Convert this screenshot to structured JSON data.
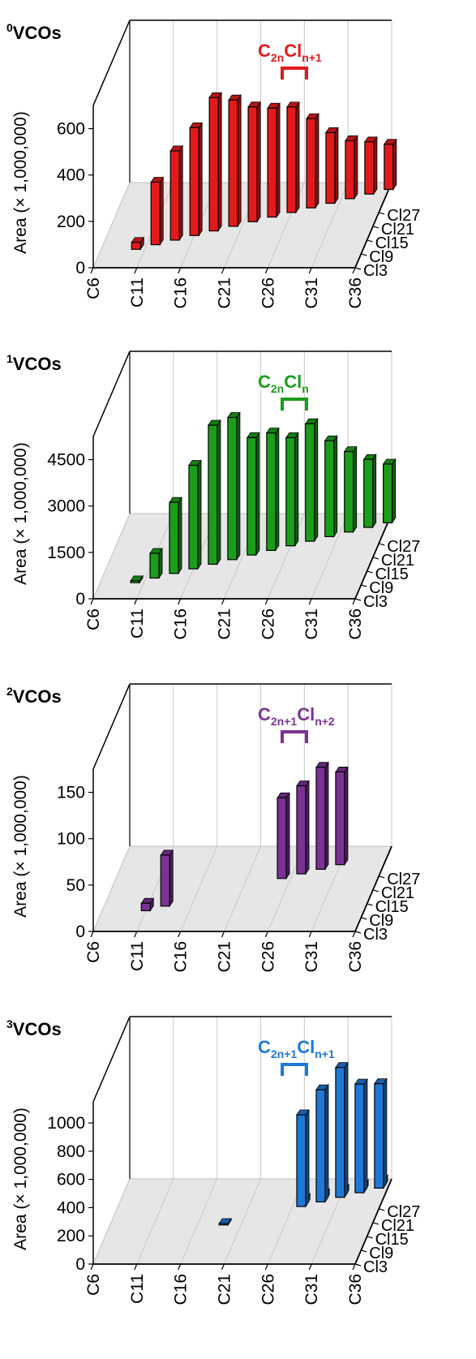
{
  "chart_data": [
    {
      "type": "bar",
      "title": "VCOs",
      "title_sup": "0",
      "color": "#e31a1c",
      "ylabel": "Area (× 1,000,000)",
      "yticks": [
        0,
        200,
        400,
        600
      ],
      "ylim": [
        0,
        700
      ],
      "xticks": [
        "C6",
        "C11",
        "C16",
        "C21",
        "C26",
        "C31",
        "C36"
      ],
      "ztick_labels": [
        "Cl27",
        "Cl21",
        "Cl15",
        "Cl9",
        "Cl3"
      ],
      "annotation": {
        "base": "C",
        "sub1": "2n",
        "mid": "Cl",
        "sub2": "n+1"
      },
      "bars": [
        {
          "c": 10,
          "cl": 11,
          "v": 30
        },
        {
          "c": 12,
          "cl": 13,
          "v": 270
        },
        {
          "c": 14,
          "cl": 15,
          "v": 385
        },
        {
          "c": 16,
          "cl": 17,
          "v": 465
        },
        {
          "c": 18,
          "cl": 19,
          "v": 575
        },
        {
          "c": 20,
          "cl": 21,
          "v": 545
        },
        {
          "c": 22,
          "cl": 23,
          "v": 495
        },
        {
          "c": 24,
          "cl": 25,
          "v": 470
        },
        {
          "c": 26,
          "cl": 27,
          "v": 455
        },
        {
          "c": 28,
          "cl": 29,
          "v": 385
        },
        {
          "c": 30,
          "cl": 31,
          "v": 305
        },
        {
          "c": 32,
          "cl": 33,
          "v": 250
        },
        {
          "c": 34,
          "cl": 35,
          "v": 225
        },
        {
          "c": 36,
          "cl": 37,
          "v": 195
        }
      ]
    },
    {
      "type": "bar",
      "title": "VCOs",
      "title_sup": "1",
      "color": "#1a9e1a",
      "ylabel": "Area (× 1,000,000)",
      "yticks": [
        0,
        1500,
        3000,
        4500
      ],
      "ylim": [
        0,
        5250
      ],
      "xticks": [
        "C6",
        "C11",
        "C16",
        "C21",
        "C26",
        "C31",
        "C36"
      ],
      "ztick_labels": [
        "Cl27",
        "Cl21",
        "Cl15",
        "Cl9",
        "Cl3"
      ],
      "annotation": {
        "base": "C",
        "sub1": "2n",
        "mid": "Cl",
        "sub2": "n"
      },
      "bars": [
        {
          "c": 10,
          "cl": 10,
          "v": 60
        },
        {
          "c": 12,
          "cl": 12,
          "v": 800
        },
        {
          "c": 14,
          "cl": 14,
          "v": 2300
        },
        {
          "c": 16,
          "cl": 16,
          "v": 3350
        },
        {
          "c": 18,
          "cl": 18,
          "v": 4500
        },
        {
          "c": 20,
          "cl": 20,
          "v": 4600
        },
        {
          "c": 22,
          "cl": 22,
          "v": 3800
        },
        {
          "c": 24,
          "cl": 24,
          "v": 3800
        },
        {
          "c": 26,
          "cl": 26,
          "v": 3500
        },
        {
          "c": 28,
          "cl": 28,
          "v": 3800
        },
        {
          "c": 30,
          "cl": 30,
          "v": 3100
        },
        {
          "c": 32,
          "cl": 32,
          "v": 2600
        },
        {
          "c": 34,
          "cl": 34,
          "v": 2200
        },
        {
          "c": 36,
          "cl": 36,
          "v": 1900
        }
      ]
    },
    {
      "type": "bar",
      "title": "VCOs",
      "title_sup": "2",
      "color": "#7b3294",
      "ylabel": "Area (× 1,000,000)",
      "yticks": [
        0,
        50,
        100,
        150
      ],
      "ylim": [
        0,
        175
      ],
      "xticks": [
        "C6",
        "C11",
        "C16",
        "C21",
        "C26",
        "C31",
        "C36"
      ],
      "ztick_labels": [
        "Cl27",
        "Cl21",
        "Cl15",
        "Cl9",
        "Cl3"
      ],
      "annotation": {
        "base": "C",
        "sub1": "2n+1",
        "mid": "Cl",
        "sub2": "n+2"
      },
      "bars": [
        {
          "c": 11,
          "cl": 12,
          "v": 8
        },
        {
          "c": 13,
          "cl": 14,
          "v": 55
        },
        {
          "c": 25,
          "cl": 26,
          "v": 87
        },
        {
          "c": 27,
          "cl": 28,
          "v": 95
        },
        {
          "c": 29,
          "cl": 30,
          "v": 110
        },
        {
          "c": 31,
          "cl": 32,
          "v": 100
        }
      ]
    },
    {
      "type": "bar",
      "title": "VCOs",
      "title_sup": "3",
      "color": "#1e78d6",
      "ylabel": "Area (× 1,000,000)",
      "yticks": [
        0,
        200,
        400,
        600,
        800,
        1000
      ],
      "ylim": [
        0,
        1150
      ],
      "xticks": [
        "C6",
        "C11",
        "C16",
        "C21",
        "C26",
        "C31",
        "C36"
      ],
      "ztick_labels": [
        "Cl27",
        "Cl21",
        "Cl15",
        "Cl9",
        "Cl3"
      ],
      "annotation": {
        "base": "C",
        "sub1": "2n+1",
        "mid": "Cl",
        "sub2": "n+1"
      },
      "bars": [
        {
          "c": 19,
          "cl": 20,
          "v": 10
        },
        {
          "c": 27,
          "cl": 28,
          "v": 650
        },
        {
          "c": 27,
          "cl": 29,
          "v": 40
        },
        {
          "c": 29,
          "cl": 30,
          "v": 795
        },
        {
          "c": 29,
          "cl": 31,
          "v": 40
        },
        {
          "c": 31,
          "cl": 32,
          "v": 920
        },
        {
          "c": 31,
          "cl": 33,
          "v": 40
        },
        {
          "c": 33,
          "cl": 34,
          "v": 770
        },
        {
          "c": 33,
          "cl": 35,
          "v": 40
        },
        {
          "c": 35,
          "cl": 36,
          "v": 740
        },
        {
          "c": 35,
          "cl": 37,
          "v": 40
        }
      ]
    }
  ]
}
